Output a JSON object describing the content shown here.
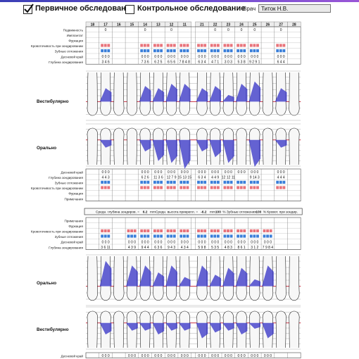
{
  "header": {
    "primary_label": "Первичное обследование",
    "primary_checked": true,
    "control_label": "Контрольное обследование",
    "control_checked": false,
    "doctor_label": "Врач",
    "doctor_value": "Титок Н.В."
  },
  "upper": {
    "teeth": [
      "18",
      "17",
      "16",
      "15",
      "14",
      "13",
      "12",
      "11",
      "21",
      "22",
      "23",
      "24",
      "25",
      "26",
      "27",
      "28"
    ],
    "rows_top": [
      "Подвижность",
      "Имплантат",
      "Фуркация",
      "Кровоточивость при зондировании",
      "Зубные отложения",
      "Десневой край",
      "Глубина зондирования"
    ],
    "mobility": [
      "",
      "0",
      "",
      "",
      "0",
      "",
      "0",
      "",
      "",
      "0",
      "0",
      "0",
      "0",
      "",
      "0",
      ""
    ],
    "gingival_margin": [
      "",
      "0 0 0",
      "",
      "",
      "0 0 0",
      "0 0 0",
      "0 0 0",
      "0 0 0",
      "0 0 0",
      "0 0 0",
      "0 0 0",
      "0 0 0",
      "0 0 0",
      "",
      "0 0 0",
      ""
    ],
    "probing_depth": [
      "",
      "3 4 6",
      "",
      "",
      "7 3 6",
      "6 2 5",
      "6 5 6",
      "7 8 4 8",
      "6 3 4",
      "4 7 1",
      "3 0 3",
      "5 3 8",
      "9 2 9 1",
      "",
      "6 4 4",
      ""
    ],
    "vestibular_label": "Вестибулярно",
    "oral_label": "Орально",
    "rows_bottom": [
      "Десневой край",
      "Глубина зондирования",
      "Зубные отложения",
      "Кровоточивость при зондировании",
      "Фуркация",
      "Примечания"
    ],
    "palatal_margin": [
      "",
      "0 0 0",
      "",
      "",
      "0 0 0",
      "0 0 0",
      "0 0 0",
      "0 0 0",
      "0 0 0",
      "0 0 0",
      "0 0 0",
      "0 0 0",
      "0 0 0",
      "",
      "0 0 0",
      ""
    ],
    "palatal_depth": [
      "",
      "4 4 3",
      "",
      "",
      "6 2 6",
      "11 3 6",
      "12 7 9",
      "15 13 15",
      "6 3 4",
      "4 4 9",
      "12 12 11",
      "",
      "9 14 3",
      "",
      "4 4 4",
      ""
    ]
  },
  "summary": {
    "avg_depth_label": "Средн. глубина зондиров. =",
    "avg_depth_value": "6.2",
    "avg_depth_unit": "mm",
    "avg_att_label": "Средн. высота прикрепл. =",
    "avg_att_value": "-6.2",
    "avg_att_unit": "mm",
    "plaque_pct": "100",
    "plaque_label": "% Зубные отложения",
    "bleed_pct": "100",
    "bleed_label": "% Кровот. при зондир."
  },
  "lower": {
    "rows_top": [
      "Примечания",
      "Фуркация",
      "Кровоточивость при зондировании",
      "Зубные отложения",
      "Десневой край",
      "Глубина зондирования"
    ],
    "gingival_margin": [
      "",
      "0 0 0",
      "",
      "0 0 0",
      "0 0 0",
      "0 0 0",
      "0 0 0",
      "0 0 0",
      "0 0 0",
      "0 0 0",
      "0 0 0",
      "0 0 0",
      "0 0 0",
      "0 0 0",
      "",
      ""
    ],
    "probing_depth": [
      "",
      "3 6 11",
      "",
      "4 3 9",
      "9 4 4",
      "6 3 6",
      "9 4 3",
      "4 3 4",
      "5 9 8",
      "5 3 5",
      "4 8 3",
      "8 6 1",
      "3 1 2",
      "7 9 8 4",
      "",
      ""
    ],
    "oral_label": "Орально",
    "vestibular_label": "Вестибулярно",
    "bottom_row": "Десневой край",
    "bottom_margin": [
      "",
      "0 0 0",
      "",
      "0 0 0",
      "0 0 0",
      "0 0 0",
      "0 0 0",
      "0 0 0",
      "0 0 0",
      "0 0 0",
      "0 0 0",
      "0 0 0",
      "0 0 0",
      "0 0 0",
      "",
      ""
    ]
  },
  "colors": {
    "accent": "#3a3fb5",
    "bleeding": "#e8737a",
    "plaque": "#3a7fd9",
    "pocket": "#3b39c8",
    "margin_line": "#d23a4a"
  }
}
